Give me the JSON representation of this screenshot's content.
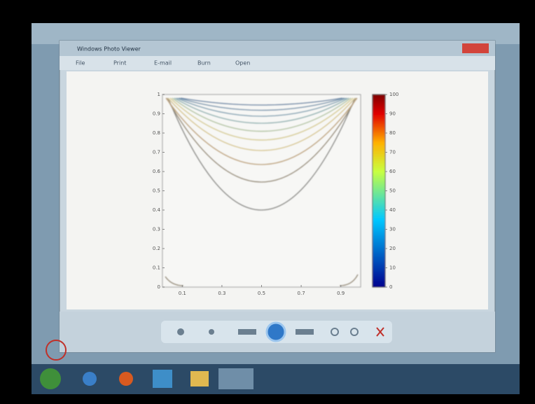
{
  "window": {
    "title": "Windows Photo Viewer",
    "menu": [
      "File",
      "Print",
      "E-mail",
      "Burn",
      "Open"
    ]
  },
  "plot": {
    "xlim": [
      0,
      1
    ],
    "xticks": [
      0.1,
      0.3,
      0.5,
      0.7,
      0.9
    ],
    "ylim": [
      0,
      1
    ],
    "yticks": [
      0,
      0.1,
      0.2,
      0.3,
      0.4,
      0.5,
      0.6,
      0.7,
      0.8,
      0.9,
      1
    ],
    "clim": [
      0,
      100
    ],
    "cticks": [
      0,
      10,
      20,
      30,
      40,
      50,
      60,
      70,
      80,
      90,
      100
    ]
  }
}
